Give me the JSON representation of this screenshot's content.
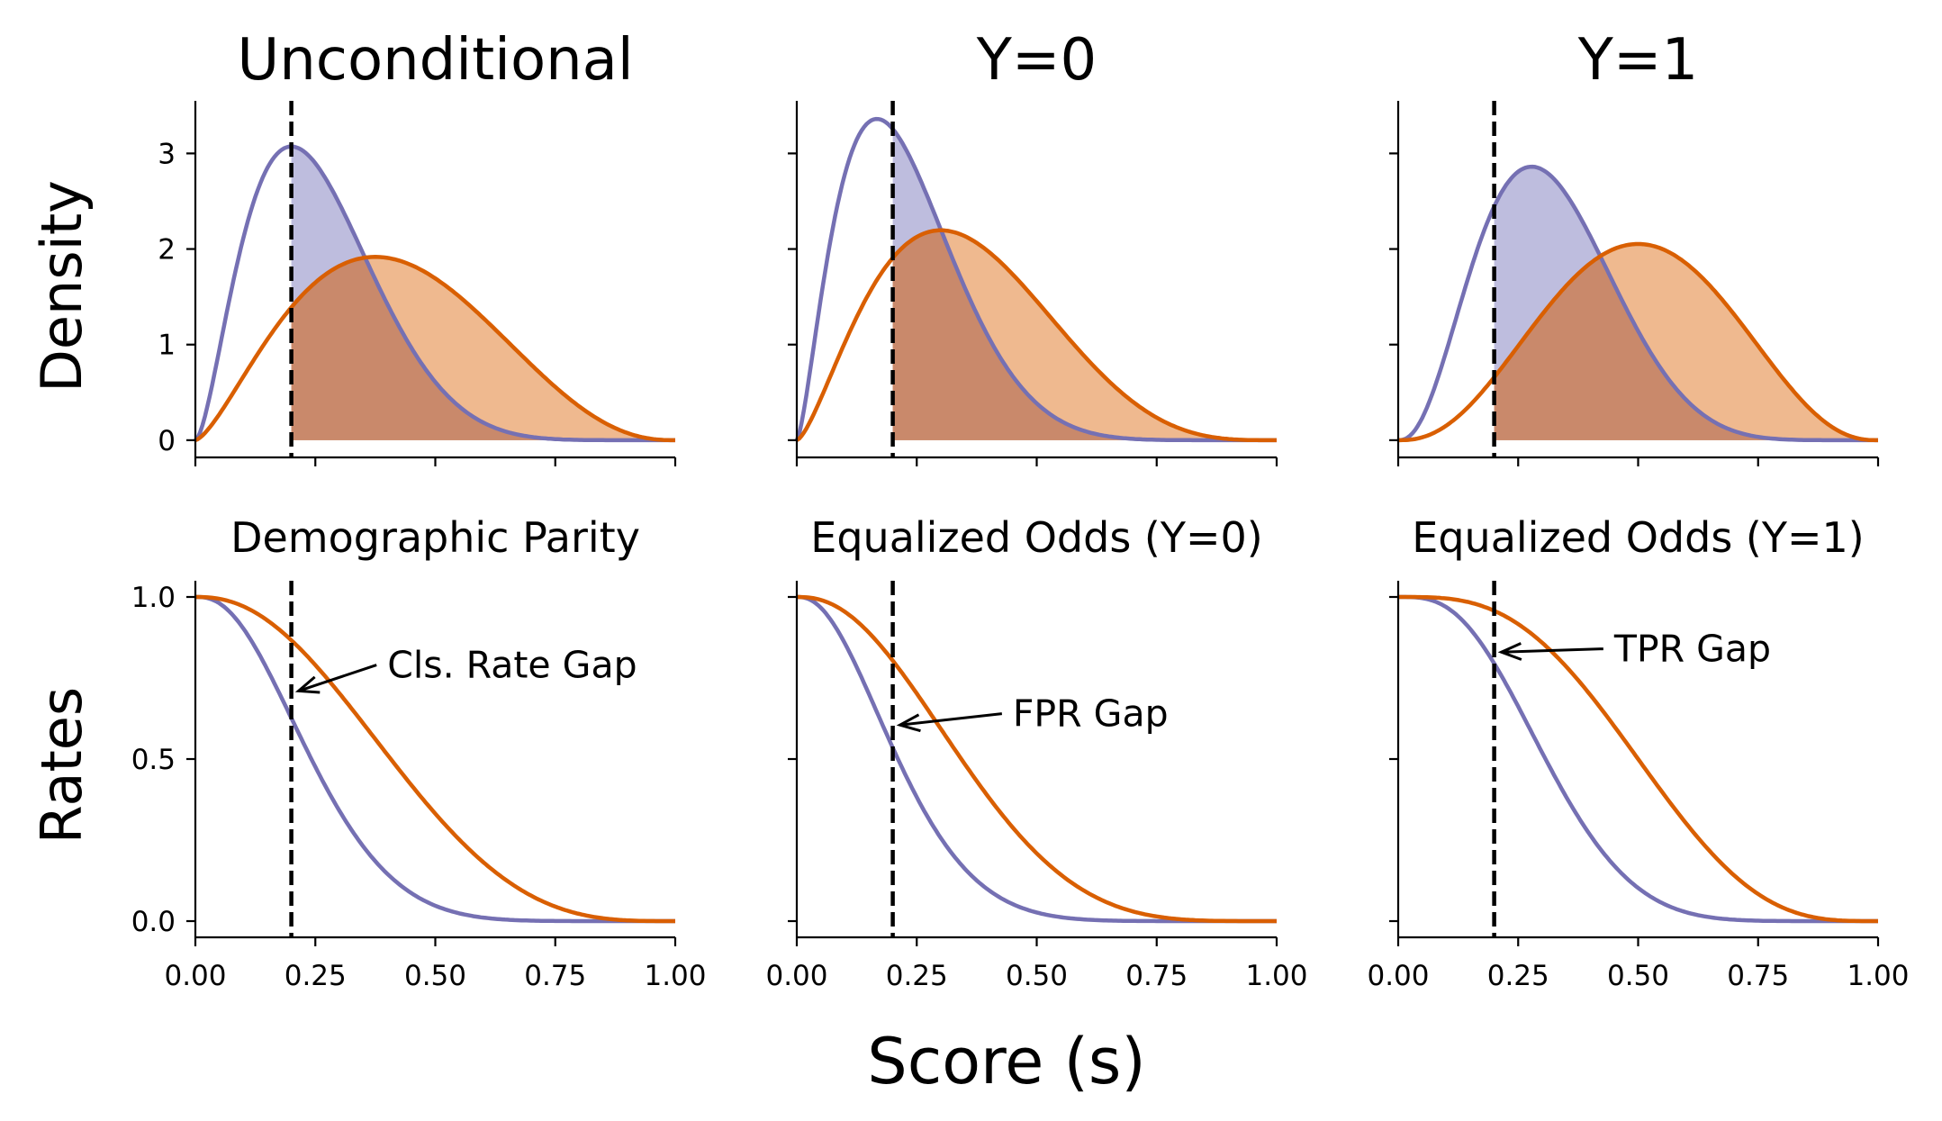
{
  "figure": {
    "xlabel": "Score (s)",
    "row_ylabels": [
      "Density",
      "Rates"
    ],
    "colors": {
      "group_a": "#7570b3",
      "group_b": "#d95f02",
      "group_a_fill": "#b3b1d8",
      "group_b_fill": "#ecad7b",
      "overlap_fill": "#c9896b"
    }
  },
  "chart_data": [
    {
      "type": "area",
      "title": "Unconditional",
      "threshold": 0.2,
      "xlim": [
        0,
        1
      ],
      "ylim": [
        -0.18,
        3.55
      ],
      "yticks": [
        0,
        1,
        2,
        3
      ],
      "ytick_labels": [
        "0",
        "1",
        "2",
        "3"
      ],
      "show_ytick_labels": true,
      "show_xtick_labels": false,
      "xticks": [
        0,
        0.25,
        0.5,
        0.75,
        1.0
      ],
      "series": [
        {
          "peak_x": 0.2,
          "peak_y": 3.07,
          "color": "#7570b3"
        },
        {
          "peak_x": 0.375,
          "peak_y": 1.92,
          "color": "#d95f02"
        }
      ]
    },
    {
      "type": "area",
      "title": "Y=0",
      "threshold": 0.2,
      "xlim": [
        0,
        1
      ],
      "ylim": [
        -0.18,
        3.55
      ],
      "yticks": [
        0,
        1,
        2,
        3
      ],
      "show_ytick_labels": false,
      "show_xtick_labels": false,
      "xticks": [
        0,
        0.25,
        0.5,
        0.75,
        1.0
      ],
      "series": [
        {
          "peak_x": 0.167,
          "peak_y": 3.36,
          "color": "#7570b3"
        },
        {
          "peak_x": 0.3,
          "peak_y": 2.2,
          "color": "#d95f02"
        }
      ]
    },
    {
      "type": "area",
      "title": "Y=1",
      "threshold": 0.2,
      "xlim": [
        0,
        1
      ],
      "ylim": [
        -0.18,
        3.55
      ],
      "yticks": [
        0,
        1,
        2,
        3
      ],
      "show_ytick_labels": false,
      "show_xtick_labels": false,
      "xticks": [
        0,
        0.25,
        0.5,
        0.75,
        1.0
      ],
      "series": [
        {
          "peak_x": 0.278,
          "peak_y": 2.86,
          "color": "#7570b3"
        },
        {
          "peak_x": 0.5,
          "peak_y": 2.05,
          "color": "#d95f02"
        }
      ]
    },
    {
      "type": "line",
      "title": "Demographic Parity",
      "threshold": 0.2,
      "xlim": [
        0,
        1
      ],
      "ylim": [
        -0.05,
        1.05
      ],
      "yticks": [
        0,
        0.5,
        1.0
      ],
      "ytick_labels": [
        "0.0",
        "0.5",
        "1.0"
      ],
      "show_ytick_labels": true,
      "show_xtick_labels": true,
      "xticks": [
        0,
        0.25,
        0.5,
        0.75,
        1.0
      ],
      "xtick_labels": [
        "0.00",
        "0.25",
        "0.50",
        "0.75",
        "1.00"
      ],
      "annotation": {
        "text": "Cls. Rate Gap",
        "text_x": 0.4,
        "text_y": 0.79,
        "arrow_x": 0.215,
        "arrow_y": 0.71
      }
    },
    {
      "type": "line",
      "title": "Equalized Odds (Y=0)",
      "threshold": 0.2,
      "xlim": [
        0,
        1
      ],
      "ylim": [
        -0.05,
        1.05
      ],
      "yticks": [
        0,
        0.5,
        1.0
      ],
      "show_ytick_labels": false,
      "show_xtick_labels": true,
      "xticks": [
        0,
        0.25,
        0.5,
        0.75,
        1.0
      ],
      "xtick_labels": [
        "0.00",
        "0.25",
        "0.50",
        "0.75",
        "1.00"
      ],
      "annotation": {
        "text": "FPR Gap",
        "text_x": 0.45,
        "text_y": 0.64,
        "arrow_x": 0.215,
        "arrow_y": 0.605
      }
    },
    {
      "type": "line",
      "title": "Equalized Odds (Y=1)",
      "threshold": 0.2,
      "xlim": [
        0,
        1
      ],
      "ylim": [
        -0.05,
        1.05
      ],
      "yticks": [
        0,
        0.5,
        1.0
      ],
      "show_ytick_labels": false,
      "show_xtick_labels": true,
      "xticks": [
        0,
        0.25,
        0.5,
        0.75,
        1.0
      ],
      "xtick_labels": [
        "0.00",
        "0.25",
        "0.50",
        "0.75",
        "1.00"
      ],
      "annotation": {
        "text": "TPR Gap",
        "text_x": 0.45,
        "text_y": 0.84,
        "arrow_x": 0.215,
        "arrow_y": 0.83
      }
    }
  ]
}
